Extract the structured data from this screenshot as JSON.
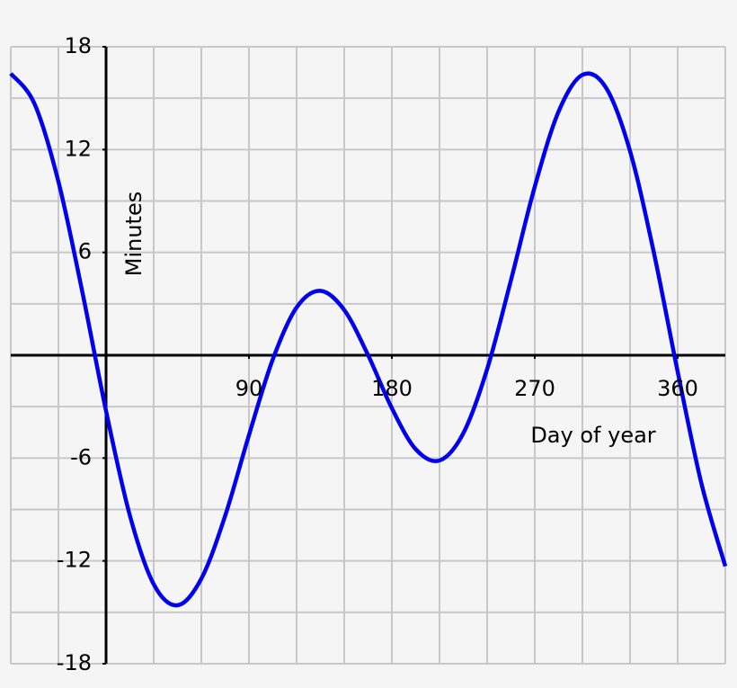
{
  "chart_data": {
    "type": "line",
    "xlabel": "Day of year",
    "ylabel": "Minutes",
    "xlim": [
      -60,
      390
    ],
    "ylim": [
      -18,
      18
    ],
    "xticks": [
      90,
      180,
      270,
      360
    ],
    "yticks": [
      18,
      12,
      6,
      -6,
      -12,
      -18
    ],
    "xgrid": [
      -60,
      -30,
      0,
      30,
      60,
      90,
      120,
      150,
      180,
      210,
      240,
      270,
      300,
      330,
      360,
      390
    ],
    "ygrid": [
      -18,
      -15,
      -12,
      -9,
      -6,
      -3,
      0,
      3,
      6,
      9,
      12,
      15,
      18
    ],
    "grid": true,
    "series": [
      {
        "color": "#0000ee",
        "x": [
          -60,
          -45,
          -30,
          -15,
          0,
          15,
          30,
          45,
          60,
          75,
          90,
          105,
          120,
          135,
          150,
          165,
          180,
          195,
          210,
          225,
          240,
          255,
          270,
          285,
          300,
          315,
          330,
          345,
          360,
          375,
          390
        ],
        "values": [
          16.44,
          14.66,
          10.13,
          3.72,
          -3.25,
          -9.35,
          -13.36,
          -14.59,
          -13.04,
          -9.37,
          -4.66,
          -0.24,
          2.79,
          3.76,
          2.64,
          0.01,
          -3.09,
          -5.48,
          -6.14,
          -4.55,
          -0.81,
          4.38,
          9.84,
          14.22,
          16.36,
          15.59,
          11.91,
          5.99,
          -0.96,
          -7.5,
          -12.31
        ]
      }
    ]
  }
}
